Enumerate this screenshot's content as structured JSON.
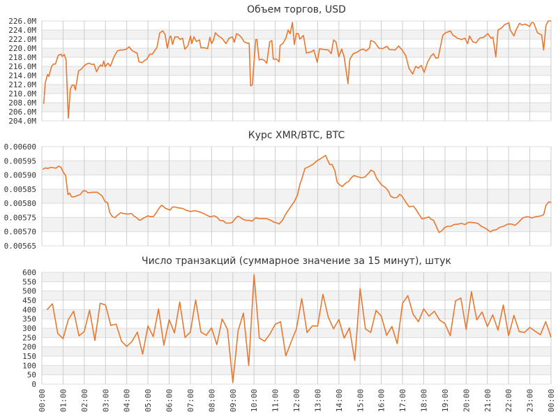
{
  "chart_data": [
    {
      "type": "line",
      "title": "Объем торгов, USD",
      "ylim": [
        204,
        226
      ],
      "ytick_values": [
        204,
        206,
        208,
        210,
        212,
        214,
        216,
        218,
        220,
        222,
        224,
        226
      ],
      "ytick_labels": [
        "204.0M",
        "206.0M",
        "208.0M",
        "210.0M",
        "212.0M",
        "214.0M",
        "216.0M",
        "218.0M",
        "220.0M",
        "222.0M",
        "224.0M",
        "226.0M"
      ],
      "xlim": [
        0,
        24
      ],
      "grid": true,
      "line_color": "#e8782e",
      "x": [
        0.09,
        0.16,
        0.27,
        0.33,
        0.46,
        0.55,
        0.64,
        0.77,
        0.9,
        0.96,
        1.06,
        1.14,
        1.25,
        1.34,
        1.42,
        1.51,
        1.58,
        1.73,
        1.86,
        1.99,
        2.1,
        2.25,
        2.35,
        2.46,
        2.58,
        2.68,
        2.77,
        2.85,
        2.92,
        2.98,
        3.12,
        3.23,
        3.4,
        3.56,
        3.7,
        3.83,
        3.99,
        4.11,
        4.25,
        4.4,
        4.49,
        4.58,
        4.71,
        4.82,
        4.95,
        5.09,
        5.21,
        5.34,
        5.42,
        5.56,
        5.7,
        5.81,
        5.91,
        6.02,
        6.08,
        6.16,
        6.27,
        6.41,
        6.52,
        6.63,
        6.74,
        6.88,
        7.01,
        7.07,
        7.17,
        7.28,
        7.43,
        7.5,
        7.67,
        7.81,
        7.92,
        8.0,
        8.08,
        8.18,
        8.32,
        8.49,
        8.68,
        8.82,
        8.98,
        9.07,
        9.18,
        9.29,
        9.42,
        9.53,
        9.69,
        9.77,
        9.84,
        9.92,
        10.08,
        10.14,
        10.24,
        10.35,
        10.49,
        10.6,
        10.74,
        10.84,
        10.91,
        11.06,
        11.18,
        11.23,
        11.37,
        11.5,
        11.61,
        11.7,
        11.81,
        11.9,
        11.99,
        12.09,
        12.16,
        12.33,
        12.47,
        12.58,
        12.71,
        12.82,
        12.98,
        13.09,
        13.31,
        13.5,
        13.64,
        13.75,
        13.86,
        14.0,
        14.13,
        14.25,
        14.43,
        14.52,
        14.68,
        14.85,
        15.01,
        15.14,
        15.29,
        15.45,
        15.5,
        15.67,
        15.89,
        16.05,
        16.27,
        16.38,
        16.65,
        16.82,
        16.98,
        17.15,
        17.31,
        17.48,
        17.62,
        17.75,
        17.88,
        18.02,
        18.19,
        18.35,
        18.46,
        18.57,
        18.68,
        18.9,
        19.04,
        19.26,
        19.37,
        19.59,
        19.78,
        19.94,
        20.07,
        20.16,
        20.31,
        20.47,
        20.63,
        20.82,
        21.02,
        21.17,
        21.26,
        21.4,
        21.5,
        21.68,
        21.81,
        22.01,
        22.08,
        22.25,
        22.36,
        22.52,
        22.63,
        22.79,
        22.99,
        23.1,
        23.18,
        23.36,
        23.56,
        23.65,
        23.76,
        23.87,
        24.0
      ],
      "y": [
        207.8,
        212.4,
        214.2,
        213.8,
        216.0,
        216.5,
        216.5,
        218.4,
        218.7,
        218.2,
        218.6,
        217.4,
        204.6,
        210.9,
        211.8,
        211.9,
        210.8,
        215.0,
        215.4,
        216.1,
        216.5,
        216.7,
        216.4,
        216.5,
        214.8,
        215.8,
        216.3,
        216.0,
        217.2,
        215.9,
        216.7,
        216.0,
        218.1,
        219.4,
        219.6,
        219.6,
        219.8,
        220.3,
        219.5,
        219.1,
        218.9,
        217.0,
        216.8,
        217.2,
        217.6,
        218.7,
        218.7,
        219.6,
        220.1,
        223.4,
        223.8,
        223.0,
        220.0,
        222.4,
        222.7,
        220.8,
        222.5,
        222.5,
        221.9,
        222.2,
        219.8,
        220.5,
        222.7,
        221.0,
        222.5,
        221.5,
        221.8,
        220.1,
        220.1,
        219.9,
        222.4,
        221.0,
        221.7,
        223.4,
        222.7,
        222.2,
        221.0,
        222.2,
        222.5,
        221.3,
        223.2,
        222.9,
        222.3,
        221.4,
        221.1,
        221.1,
        211.7,
        211.9,
        221.9,
        221.9,
        217.4,
        217.6,
        217.3,
        216.7,
        221.4,
        221.7,
        217.6,
        217.6,
        217.0,
        220.6,
        221.1,
        222.2,
        224.0,
        223.2,
        225.7,
        220.8,
        223.2,
        223.2,
        222.0,
        222.8,
        218.9,
        219.1,
        219.2,
        219.6,
        216.9,
        219.9,
        219.7,
        219.6,
        218.8,
        221.8,
        221.4,
        218.1,
        219.8,
        218.1,
        212.2,
        217.6,
        218.8,
        219.1,
        219.6,
        219.8,
        219.4,
        220.1,
        221.7,
        221.4,
        220.0,
        219.9,
        220.4,
        219.7,
        219.6,
        220.5,
        219.6,
        218.4,
        215.5,
        214.3,
        216.0,
        215.6,
        216.2,
        214.7,
        217.0,
        218.3,
        218.8,
        217.8,
        217.9,
        222.9,
        223.4,
        223.8,
        222.9,
        222.2,
        221.9,
        222.2,
        221.0,
        222.7,
        221.4,
        221.2,
        222.2,
        222.4,
        223.2,
        222.2,
        222.4,
        218.1,
        224.0,
        224.5,
        225.2,
        225.6,
        224.0,
        222.7,
        224.1,
        225.5,
        225.1,
        225.3,
        224.8,
        225.7,
        225.6,
        223.4,
        222.9,
        219.6,
        225.0,
        226.0,
        226.0
      ]
    },
    {
      "type": "line",
      "title": "Курс XMR/BTC, BTC",
      "ylim": [
        0.00565,
        0.006
      ],
      "ytick_values": [
        0.00565,
        0.0057,
        0.00575,
        0.0058,
        0.00585,
        0.0059,
        0.00595,
        0.006
      ],
      "ytick_labels": [
        "0.00565",
        "0.00570",
        "0.00575",
        "0.00580",
        "0.00585",
        "0.00590",
        "0.00595",
        "0.00600"
      ],
      "xlim": [
        0,
        24
      ],
      "grid": true,
      "line_color": "#e8782e",
      "x": [
        0.05,
        0.16,
        0.27,
        0.44,
        0.66,
        0.79,
        0.9,
        1.01,
        1.12,
        1.23,
        1.31,
        1.4,
        1.53,
        1.7,
        1.81,
        1.95,
        2.06,
        2.17,
        2.41,
        2.61,
        2.76,
        2.85,
        2.98,
        3.09,
        3.2,
        3.31,
        3.45,
        3.56,
        3.72,
        3.83,
        4.05,
        4.22,
        4.36,
        4.47,
        4.58,
        4.66,
        4.82,
        5.01,
        5.09,
        5.26,
        5.39,
        5.5,
        5.64,
        5.75,
        5.83,
        5.91,
        6.04,
        6.16,
        6.27,
        6.41,
        6.63,
        6.79,
        7.01,
        7.21,
        7.34,
        7.56,
        7.78,
        7.94,
        8.11,
        8.24,
        8.38,
        8.55,
        8.68,
        8.86,
        8.99,
        9.09,
        9.22,
        9.33,
        9.47,
        9.62,
        9.75,
        9.91,
        10.08,
        10.24,
        10.41,
        10.6,
        10.79,
        10.95,
        11.12,
        11.18,
        11.34,
        11.51,
        11.73,
        11.89,
        12.05,
        12.16,
        12.27,
        12.4,
        12.55,
        12.77,
        12.98,
        13.15,
        13.37,
        13.48,
        13.57,
        13.68,
        13.81,
        13.92,
        14.03,
        14.16,
        14.3,
        14.47,
        14.58,
        14.71,
        14.91,
        15.07,
        15.23,
        15.4,
        15.51,
        15.65,
        15.78,
        16.0,
        16.22,
        16.35,
        16.44,
        16.6,
        16.74,
        16.87,
        16.98,
        17.15,
        17.31,
        17.51,
        17.62,
        17.75,
        17.92,
        18.08,
        18.24,
        18.35,
        18.46,
        18.61,
        18.72,
        18.85,
        18.98,
        19.12,
        19.29,
        19.42,
        19.64,
        19.78,
        19.94,
        20.11,
        20.33,
        20.55,
        20.71,
        20.93,
        21.15,
        21.26,
        21.43,
        21.57,
        21.76,
        21.97,
        22.14,
        22.3,
        22.47,
        22.66,
        22.8,
        22.96,
        23.11,
        23.23,
        23.4,
        23.54,
        23.65,
        23.76,
        23.89,
        24.0
      ],
      "y": [
        0.00592,
        0.005925,
        0.005923,
        0.005927,
        0.005924,
        0.005931,
        0.005927,
        0.00591,
        0.005898,
        0.005831,
        0.005836,
        0.005823,
        0.005823,
        0.005828,
        0.005831,
        0.005844,
        0.005844,
        0.005837,
        0.005839,
        0.005839,
        0.005831,
        0.005825,
        0.005806,
        0.005803,
        0.005768,
        0.005754,
        0.005749,
        0.005758,
        0.005767,
        0.005764,
        0.005762,
        0.005764,
        0.005754,
        0.005749,
        0.005741,
        0.005741,
        0.005749,
        0.005756,
        0.005753,
        0.005753,
        0.005766,
        0.00578,
        0.005793,
        0.005788,
        0.005782,
        0.00578,
        0.005776,
        0.005787,
        0.005787,
        0.005784,
        0.005782,
        0.005776,
        0.005771,
        0.005774,
        0.005772,
        0.005766,
        0.005758,
        0.005752,
        0.005756,
        0.005752,
        0.00574,
        0.005738,
        0.00573,
        0.00573,
        0.005733,
        0.005744,
        0.005754,
        0.005752,
        0.005744,
        0.00574,
        0.00574,
        0.005737,
        0.005749,
        0.005746,
        0.005746,
        0.005746,
        0.00574,
        0.005733,
        0.00573,
        0.005727,
        0.00574,
        0.005764,
        0.005788,
        0.005805,
        0.005829,
        0.005866,
        0.00589,
        0.005923,
        0.005928,
        0.005937,
        0.005951,
        0.005958,
        0.005969,
        0.005951,
        0.005937,
        0.005937,
        0.005915,
        0.005874,
        0.005866,
        0.005859,
        0.00587,
        0.005878,
        0.00589,
        0.005898,
        0.005893,
        0.00589,
        0.005893,
        0.005906,
        0.005917,
        0.005912,
        0.005888,
        0.005866,
        0.005854,
        0.005841,
        0.005825,
        0.005819,
        0.005821,
        0.005832,
        0.005825,
        0.005805,
        0.005788,
        0.00579,
        0.00578,
        0.005764,
        0.005745,
        0.005748,
        0.005752,
        0.005744,
        0.00574,
        0.005715,
        0.005697,
        0.005703,
        0.005714,
        0.005719,
        0.005719,
        0.005725,
        0.005727,
        0.005729,
        0.005725,
        0.005733,
        0.005732,
        0.005729,
        0.005719,
        0.005711,
        0.005699,
        0.005705,
        0.005707,
        0.005715,
        0.005719,
        0.005727,
        0.005727,
        0.005722,
        0.005733,
        0.005748,
        0.005752,
        0.005752,
        0.005748,
        0.005752,
        0.005754,
        0.005756,
        0.00576,
        0.005793,
        0.005805,
        0.005803
      ]
    },
    {
      "type": "line",
      "title": "Число транзакций (суммарное значение за 15 минут), штук",
      "ylim": [
        0,
        600
      ],
      "ytick_values": [
        0,
        50,
        100,
        150,
        200,
        250,
        300,
        350,
        400,
        450,
        500,
        550,
        600
      ],
      "ytick_labels": [
        "0",
        "50",
        "100",
        "150",
        "200",
        "250",
        "300",
        "350",
        "400",
        "450",
        "500",
        "550",
        "600"
      ],
      "xlim": [
        0,
        24
      ],
      "xtick_labels": [
        "00:00",
        "01:00",
        "02:00",
        "03:00",
        "04:00",
        "05:00",
        "06:00",
        "07:00",
        "08:00",
        "09:00",
        "10:00",
        "11:00",
        "12:00",
        "13:00",
        "14:00",
        "15:00",
        "16:00",
        "17:00",
        "18:00",
        "19:00",
        "20:00",
        "21:00",
        "22:00",
        "23:00",
        "00:00"
      ],
      "grid": true,
      "line_color": "#e8782e",
      "x_step_hours": 0.25,
      "x_start_hours": 0.25,
      "y": [
        400,
        431,
        272,
        244,
        347,
        391,
        259,
        282,
        397,
        235,
        434,
        425,
        315,
        322,
        231,
        202,
        229,
        279,
        161,
        312,
        255,
        404,
        209,
        346,
        275,
        441,
        250,
        279,
        452,
        279,
        262,
        302,
        212,
        350,
        294,
        9,
        287,
        381,
        100,
        587,
        247,
        230,
        269,
        321,
        335,
        152,
        227,
        297,
        459,
        277,
        312,
        312,
        482,
        360,
        297,
        347,
        247,
        302,
        127,
        512,
        297,
        277,
        396,
        365,
        262,
        309,
        217,
        434,
        475,
        375,
        335,
        404,
        365,
        391,
        344,
        325,
        260,
        447,
        462,
        294,
        496,
        345,
        387,
        309,
        372,
        290,
        425,
        260,
        369,
        282,
        277,
        304,
        284,
        265,
        335,
        252
      ]
    }
  ]
}
